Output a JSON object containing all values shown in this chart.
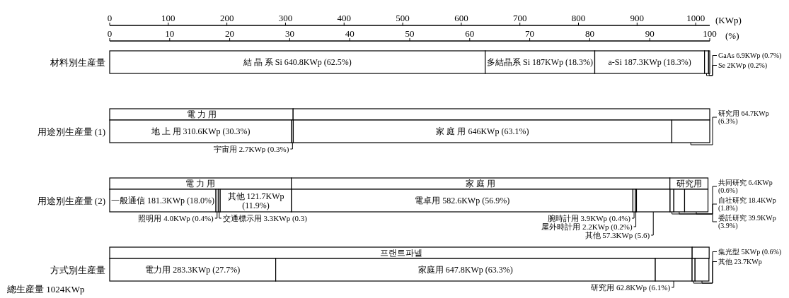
{
  "chart_data": {
    "type": "bar",
    "orientation": "horizontal",
    "stacked": true,
    "color": "#ffffff",
    "categories": [
      "材料別生産量",
      null,
      "用途別生産量 (1)",
      null,
      "用途別生産量 (2)",
      null,
      "方式別生産量"
    ],
    "series": [
      {
        "values": [
          640.8,
          313,
          310.6,
          310,
          181.3,
          994,
          283.3
        ],
        "value_labels": [
          "結　晶　系 Si　640.8KWp (62.5%)",
          "電　力　用",
          "地 上 用 310.6KWp (30.3%)",
          "電　力　用",
          "一般通信 181.3KWp (18.0%)",
          "프랜트파넬",
          "電力用 283.3KWp (27.7%)"
        ]
      },
      {
        "values": [
          187,
          711,
          2.7,
          646,
          4.0,
          29,
          647.8
        ],
        "value_labels": [
          "多結晶系 Si 187KWp (18.3%)",
          null,
          "宇宙用 2.7KWp (0.3%)",
          "家　　庭　　用",
          "照明用 4.0KWp (0.4%)",
          null,
          "家庭用 647.8KWp (63.3%)"
        ]
      },
      {
        "values": [
          187.3,
          null,
          646,
          65,
          3.3,
          null,
          62.8
        ],
        "value_labels": [
          "a-Si 187.3KWp (18.3%)",
          null,
          "家　庭　用 646KWp (63.1%)",
          "研究用",
          "交通標示用 3.3KWp (0.3)",
          null,
          "研究用 62.8KWp (6.1%)"
        ]
      },
      {
        "values": [
          6.9,
          null,
          64.7,
          null,
          121.7,
          null,
          5
        ],
        "value_labels": [
          "GaAs 6.9KWp (0.7%)",
          null,
          "研究用 64.7KWp (6.3%)",
          null,
          "其他 121.7KWp (11.9%)",
          null,
          "集光型 5KWp (0.6%)"
        ]
      },
      {
        "values": [
          2,
          null,
          null,
          null,
          582.6,
          null,
          23.7
        ],
        "value_labels": [
          "Se 2KWp (0.2%)",
          null,
          null,
          null,
          "電卓用 582.6KWp (56.9%)",
          null,
          "其他 23.7KWp"
        ]
      },
      {
        "values": [
          null,
          null,
          null,
          null,
          3.9,
          null,
          null
        ],
        "value_labels": [
          null,
          null,
          null,
          null,
          "腕時計用 3.9KWp (0.4%)",
          null,
          null
        ]
      },
      {
        "values": [
          null,
          null,
          null,
          null,
          2.2,
          null,
          null
        ],
        "value_labels": [
          null,
          null,
          null,
          null,
          "屋外時計用 2.2KWp (0.2%)",
          null,
          null
        ]
      },
      {
        "values": [
          null,
          null,
          null,
          null,
          57.3,
          null,
          null
        ],
        "value_labels": [
          null,
          null,
          null,
          null,
          "其他 57.3KWp (5.6)",
          null,
          null
        ]
      },
      {
        "values": [
          null,
          null,
          null,
          null,
          6.4,
          null,
          null
        ],
        "value_labels": [
          null,
          null,
          null,
          null,
          "共同研究 6.4KWp (0.6%)",
          null,
          null
        ]
      },
      {
        "values": [
          null,
          null,
          null,
          null,
          18.4,
          null,
          null
        ],
        "value_labels": [
          null,
          null,
          null,
          null,
          "自社研究 18.4KWp (1.8%)",
          null,
          null
        ]
      },
      {
        "values": [
          null,
          null,
          null,
          null,
          39.9,
          null,
          null
        ],
        "value_labels": [
          null,
          null,
          null,
          null,
          "委託研究 39.9KWp (3.9%)",
          null,
          null
        ]
      }
    ],
    "xlim": [
      0,
      1024
    ],
    "xticks": [
      0,
      100,
      200,
      300,
      400,
      500,
      600,
      700,
      800,
      900,
      1000
    ],
    "xlabel": "(KWp)",
    "x2lim": [
      0,
      100
    ],
    "x2ticks": [
      0,
      10,
      20,
      30,
      40,
      50,
      60,
      70,
      80,
      90,
      100
    ],
    "x2label": "(%)",
    "annotations": [
      "總生産量 1024KWp"
    ]
  }
}
